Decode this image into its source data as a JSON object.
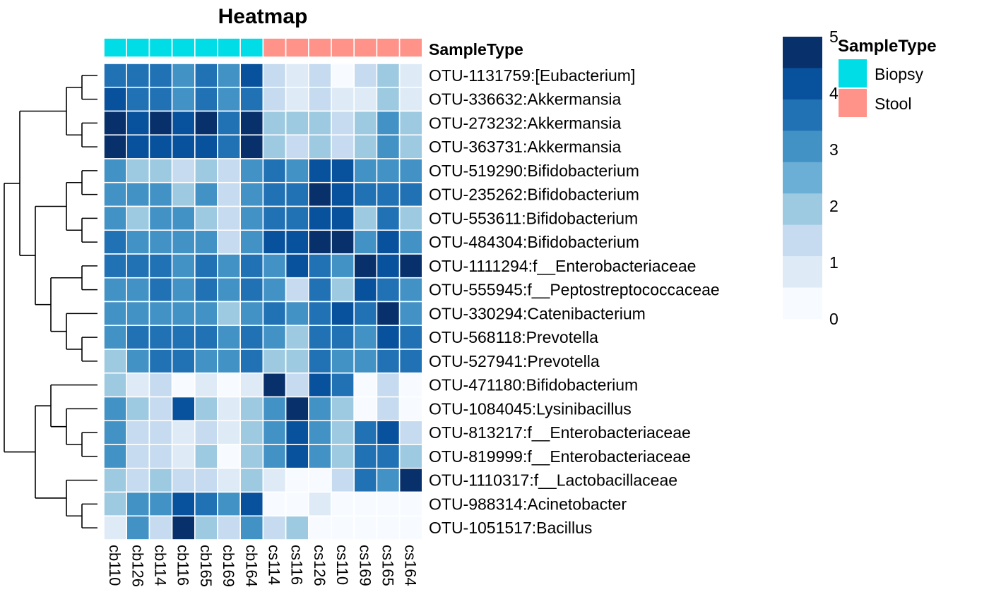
{
  "chart_data": {
    "type": "heatmap",
    "title": "Heatmap",
    "columns": [
      "cb110",
      "cb126",
      "cb114",
      "cb116",
      "cb165",
      "cb169",
      "cb164",
      "cs114",
      "cs116",
      "cs126",
      "cs110",
      "cs169",
      "cs165",
      "cs164"
    ],
    "column_annotation": {
      "name": "SampleType",
      "values": [
        "Biopsy",
        "Biopsy",
        "Biopsy",
        "Biopsy",
        "Biopsy",
        "Biopsy",
        "Biopsy",
        "Stool",
        "Stool",
        "Stool",
        "Stool",
        "Stool",
        "Stool",
        "Stool"
      ],
      "legend": [
        {
          "label": "Biopsy",
          "color": "#00DDE6"
        },
        {
          "label": "Stool",
          "color": "#FF938A"
        }
      ]
    },
    "rows": [
      "OTU-1131759:[Eubacterium]",
      "OTU-336632:Akkermansia",
      "OTU-273232:Akkermansia",
      "OTU-363731:Akkermansia",
      "OTU-519290:Bifidobacterium",
      "OTU-235262:Bifidobacterium",
      "OTU-553611:Bifidobacterium",
      "OTU-484304:Bifidobacterium",
      "OTU-1111294:f__Enterobacteriaceae",
      "OTU-555945:f__Peptostreptococcaceae",
      "OTU-330294:Catenibacterium",
      "OTU-568118:Prevotella",
      "OTU-527941:Prevotella",
      "OTU-471180:Bifidobacterium",
      "OTU-1084045:Lysinibacillus",
      "OTU-813217:f__Enterobacteriaceae",
      "OTU-819999:f__Enterobacteriaceae",
      "OTU-1110317:f__Lactobacillaceae",
      "OTU-988314:Acinetobacter",
      "OTU-1051517:Bacillus"
    ],
    "values": [
      [
        3.8,
        3.8,
        3.8,
        3.2,
        3.8,
        2.8,
        4.3,
        1.3,
        0.9,
        1.3,
        0.3,
        1.3,
        2.2,
        0.9
      ],
      [
        4.2,
        3.8,
        3.8,
        3.2,
        3.8,
        3.2,
        3.8,
        1.3,
        0.9,
        1.3,
        0.9,
        0.9,
        2.2,
        0.9
      ],
      [
        4.8,
        4.3,
        4.8,
        4.3,
        4.8,
        3.8,
        4.8,
        2.2,
        2.2,
        2.2,
        1.3,
        2.2,
        3.2,
        2.2
      ],
      [
        4.8,
        4.3,
        4.3,
        4.3,
        4.3,
        3.8,
        4.8,
        2.2,
        1.3,
        2.2,
        1.3,
        2.2,
        2.8,
        2.2
      ],
      [
        3.2,
        2.2,
        2.2,
        1.3,
        2.2,
        1.3,
        2.8,
        3.8,
        3.2,
        4.3,
        4.3,
        3.2,
        3.2,
        3.2
      ],
      [
        3.2,
        2.8,
        2.8,
        2.2,
        2.8,
        1.3,
        3.2,
        3.8,
        3.8,
        4.8,
        4.3,
        3.8,
        3.8,
        3.8
      ],
      [
        3.2,
        2.2,
        2.8,
        2.8,
        2.2,
        1.3,
        2.8,
        3.8,
        3.8,
        4.3,
        4.3,
        2.2,
        3.8,
        2.2
      ],
      [
        3.8,
        2.8,
        3.2,
        2.8,
        2.8,
        1.3,
        3.2,
        4.3,
        4.3,
        4.8,
        4.8,
        2.8,
        4.3,
        2.8
      ],
      [
        3.8,
        3.8,
        3.8,
        3.2,
        3.8,
        2.8,
        3.8,
        3.2,
        4.3,
        3.8,
        2.8,
        4.8,
        4.3,
        4.8
      ],
      [
        3.2,
        3.2,
        3.8,
        3.2,
        3.8,
        2.8,
        3.8,
        3.2,
        1.3,
        3.8,
        2.2,
        4.3,
        3.8,
        3.2
      ],
      [
        3.2,
        3.2,
        3.2,
        3.2,
        3.2,
        2.2,
        3.2,
        3.8,
        2.8,
        3.8,
        4.3,
        3.8,
        4.8,
        3.2
      ],
      [
        2.8,
        3.8,
        3.8,
        3.8,
        3.8,
        2.8,
        3.8,
        3.2,
        2.2,
        3.8,
        3.8,
        3.2,
        4.3,
        3.8
      ],
      [
        2.2,
        3.2,
        3.8,
        3.8,
        3.2,
        2.8,
        3.8,
        2.2,
        2.2,
        3.8,
        3.2,
        2.8,
        3.8,
        3.8
      ],
      [
        2.2,
        0.9,
        1.3,
        0.2,
        0.9,
        0.2,
        0.9,
        4.8,
        1.3,
        4.3,
        3.8,
        0.2,
        1.3,
        0.2
      ],
      [
        3.2,
        2.2,
        1.3,
        4.3,
        2.2,
        0.9,
        2.2,
        2.8,
        4.8,
        2.8,
        2.2,
        0.2,
        1.3,
        0.2
      ],
      [
        2.8,
        1.3,
        1.3,
        0.9,
        1.3,
        0.9,
        2.2,
        3.2,
        4.3,
        3.2,
        2.2,
        3.8,
        4.3,
        1.3
      ],
      [
        2.8,
        1.3,
        1.3,
        0.9,
        2.2,
        0.2,
        2.2,
        3.2,
        4.3,
        3.2,
        2.2,
        3.8,
        3.8,
        2.2
      ],
      [
        2.2,
        1.3,
        2.2,
        1.3,
        1.3,
        0.9,
        2.2,
        0.9,
        0.2,
        0.2,
        1.3,
        3.8,
        2.8,
        4.8
      ],
      [
        2.2,
        3.2,
        3.2,
        4.3,
        3.8,
        3.2,
        4.3,
        0.2,
        0.2,
        0.9,
        0.2,
        0.2,
        0.2,
        0.2
      ],
      [
        0.9,
        2.8,
        1.3,
        4.8,
        2.2,
        1.3,
        2.8,
        1.3,
        2.2,
        0.2,
        0.2,
        0.2,
        0.2,
        0.2
      ]
    ],
    "scale": {
      "min": 0,
      "max": 5,
      "ticks": [
        "0",
        "1",
        "2",
        "3",
        "4",
        "5"
      ],
      "colors": [
        "#F7FBFF",
        "#DEEBF7",
        "#C6DBEF",
        "#9ECAE1",
        "#6BAED6",
        "#4292C6",
        "#2171B5",
        "#08519C",
        "#08306B"
      ]
    },
    "dendrogram": {
      "rows": "clustered (hierarchical)",
      "columns": "not shown"
    }
  }
}
